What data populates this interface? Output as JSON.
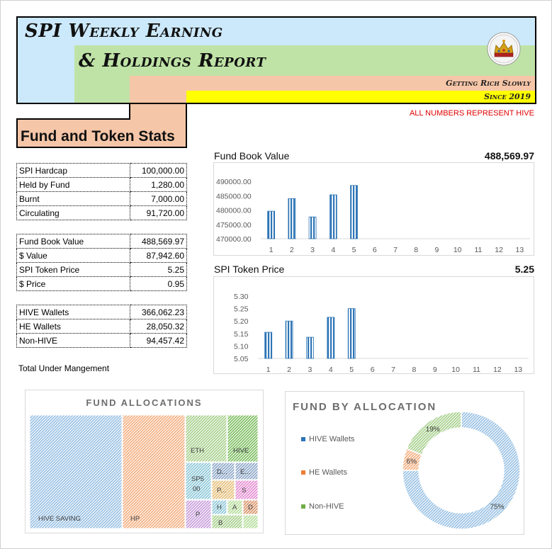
{
  "header": {
    "title_line1": "SPI Weekly Earning",
    "title_line2": "& Holdings Report",
    "tagline": "Getting Rich Slowly",
    "since": "Since 2019",
    "logo_icon": "crown-logo-icon"
  },
  "note": "ALL NUMBERS REPRESENT HIVE",
  "stats_title": "Fund and Token Stats",
  "token_table": [
    {
      "label": "SPI Hardcap",
      "value": "100,000.00"
    },
    {
      "label": "Held by Fund",
      "value": "1,280.00"
    },
    {
      "label": "Burnt",
      "value": "7,000.00"
    },
    {
      "label": "Circulating",
      "value": "91,720.00"
    }
  ],
  "value_table": [
    {
      "label": "Fund Book Value",
      "value": "488,569.97"
    },
    {
      "label": "$ Value",
      "value": "87,942.60"
    },
    {
      "label": "SPI Token Price",
      "value": "5.25"
    },
    {
      "label": "$ Price",
      "value": "0.95"
    }
  ],
  "wallet_table": [
    {
      "label": "HIVE Wallets",
      "value": "366,062.23"
    },
    {
      "label": "HE Wallets",
      "value": "28,050.32"
    },
    {
      "label": "Non-HIVE",
      "value": "94,457.42"
    }
  ],
  "total_label": "Total Under Mangement",
  "colors": {
    "bar": "#2e75b6",
    "banner_blue": "#cce9fb",
    "banner_green": "#bfe3a6",
    "banner_peach": "#f6c6a8",
    "banner_yellow": "#ffff00",
    "note_red": "#e00000"
  },
  "chart_data": [
    {
      "type": "bar",
      "title": "Fund Book Value",
      "headline_value": "488,569.97",
      "categories": [
        "1",
        "2",
        "3",
        "4",
        "5",
        "6",
        "7",
        "8",
        "9",
        "10",
        "11",
        "12",
        "13"
      ],
      "values": [
        479600,
        484000,
        477600,
        485300,
        488570,
        null,
        null,
        null,
        null,
        null,
        null,
        null,
        null
      ],
      "yticks": [
        "490000.00",
        "485000.00",
        "480000.00",
        "475000.00",
        "470000.00"
      ],
      "ylim": [
        470000,
        490000
      ],
      "grid": false
    },
    {
      "type": "bar",
      "title": "SPI Token Price",
      "headline_value": "5.25",
      "categories": [
        "1",
        "2",
        "3",
        "4",
        "5",
        "6",
        "7",
        "8",
        "9",
        "10",
        "11",
        "12",
        "13"
      ],
      "values": [
        5.155,
        5.2,
        5.135,
        5.215,
        5.25,
        null,
        null,
        null,
        null,
        null,
        null,
        null,
        null
      ],
      "yticks": [
        "5.30",
        "5.25",
        "5.20",
        "5.15",
        "5.10",
        "5.05"
      ],
      "ylim": [
        5.05,
        5.3
      ],
      "grid": false
    },
    {
      "type": "heatmap",
      "title": "FUND ALLOCATIONS",
      "labels": [
        "HIVE SAVING",
        "HP",
        "ETH",
        "HIVE",
        "SPS 00",
        "D...",
        "E...",
        "P...",
        "S",
        "P",
        "H",
        "A",
        "D",
        "B"
      ],
      "label_display": [
        "HIVE SAVING",
        "HP",
        "ETH",
        "HIVE",
        "SP5",
        "00",
        "D...",
        "E...",
        "P...",
        "S",
        "P",
        "H",
        "A",
        "D",
        "B"
      ],
      "weights": [
        170,
        130,
        36,
        38,
        20,
        10,
        10,
        8,
        7,
        7,
        4,
        3,
        3,
        3
      ]
    },
    {
      "type": "pie",
      "title": "FUND BY ALLOCATION",
      "legend": [
        "HIVE Wallets",
        "HE Wallets",
        "Non-HIVE"
      ],
      "values": [
        75,
        6,
        19
      ],
      "value_labels": [
        "75%",
        "6%",
        "19%"
      ],
      "legend_position": "left"
    }
  ]
}
